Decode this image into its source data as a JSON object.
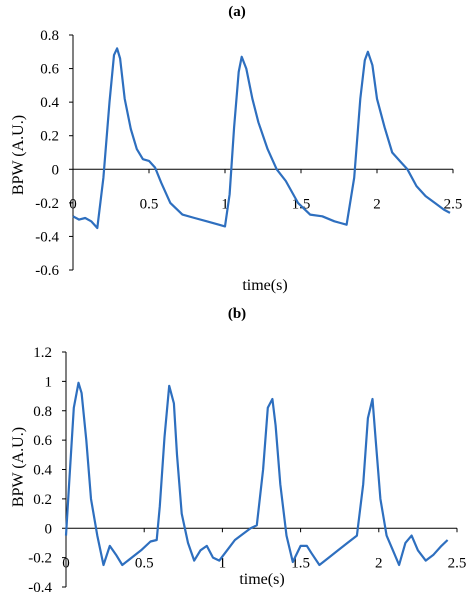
{
  "chart_data": [
    {
      "panel_label": "(a)",
      "type": "line",
      "xlabel": "time(s)",
      "ylabel": "BPW (A.U.)",
      "xlim": [
        0,
        2.5
      ],
      "ylim": [
        -0.6,
        0.8
      ],
      "xticks": [
        0,
        0.5,
        1,
        1.5,
        2,
        2.5
      ],
      "xtick_labels": [
        "0",
        "0.5",
        "1",
        "1.5",
        "2",
        "2.5"
      ],
      "yticks": [
        -0.6,
        -0.4,
        -0.2,
        0,
        0.2,
        0.4,
        0.6,
        0.8
      ],
      "ytick_labels": [
        "-0.6",
        "-0.4",
        "-0.2",
        "0",
        "0.2",
        "0.4",
        "0.6",
        "0.8"
      ],
      "grid": false,
      "line_color": "#2e6fbf",
      "series": [
        {
          "x": [
            0,
            0.04,
            0.08,
            0.12,
            0.16,
            0.2,
            0.24,
            0.27,
            0.29,
            0.31,
            0.34,
            0.38,
            0.42,
            0.46,
            0.5,
            0.54,
            0.58,
            0.64,
            0.72,
            0.8,
            0.88,
            0.96,
            1.0,
            1.03,
            1.06,
            1.09,
            1.11,
            1.14,
            1.18,
            1.22,
            1.28,
            1.34,
            1.4,
            1.48,
            1.56,
            1.64,
            1.72,
            1.76,
            1.8,
            1.85,
            1.89,
            1.92,
            1.94,
            1.97,
            2.0,
            2.05,
            2.1,
            2.16,
            2.2,
            2.26,
            2.32,
            2.38,
            2.44,
            2.48
          ],
          "y": [
            -0.28,
            -0.3,
            -0.29,
            -0.31,
            -0.35,
            -0.05,
            0.4,
            0.68,
            0.72,
            0.66,
            0.42,
            0.24,
            0.12,
            0.06,
            0.05,
            0.01,
            -0.08,
            -0.2,
            -0.27,
            -0.29,
            -0.31,
            -0.33,
            -0.34,
            -0.15,
            0.25,
            0.58,
            0.67,
            0.6,
            0.42,
            0.28,
            0.12,
            0.0,
            -0.07,
            -0.2,
            -0.27,
            -0.28,
            -0.31,
            -0.32,
            -0.33,
            -0.05,
            0.42,
            0.65,
            0.7,
            0.62,
            0.42,
            0.25,
            0.1,
            0.04,
            0.0,
            -0.1,
            -0.16,
            -0.2,
            -0.24,
            -0.26
          ]
        }
      ]
    },
    {
      "panel_label": "(b)",
      "type": "line",
      "xlabel": "time(s)",
      "ylabel": "BPW (A.U.)",
      "xlim": [
        0,
        2.5
      ],
      "ylim": [
        -0.4,
        1.2
      ],
      "xticks": [
        0,
        0.5,
        1,
        1.5,
        2,
        2.5
      ],
      "xtick_labels": [
        "0",
        "0.5",
        "1",
        "1.5",
        "2",
        "2.5"
      ],
      "yticks": [
        -0.4,
        -0.2,
        0,
        0.2,
        0.4,
        0.6,
        0.8,
        1,
        1.2
      ],
      "ytick_labels": [
        "-0.4",
        "-0.2",
        "0",
        "0.2",
        "0.4",
        "0.6",
        "0.8",
        "1",
        "1.2"
      ],
      "grid": false,
      "line_color": "#2e6fbf",
      "series": [
        {
          "x": [
            0,
            0.02,
            0.05,
            0.08,
            0.1,
            0.13,
            0.16,
            0.2,
            0.24,
            0.28,
            0.32,
            0.36,
            0.42,
            0.48,
            0.54,
            0.58,
            0.6,
            0.63,
            0.66,
            0.69,
            0.71,
            0.74,
            0.78,
            0.82,
            0.86,
            0.9,
            0.94,
            0.98,
            1.03,
            1.08,
            1.13,
            1.18,
            1.22,
            1.26,
            1.29,
            1.32,
            1.34,
            1.37,
            1.41,
            1.45,
            1.5,
            1.54,
            1.57,
            1.62,
            1.68,
            1.74,
            1.8,
            1.86,
            1.9,
            1.93,
            1.96,
            1.98,
            2.01,
            2.05,
            2.09,
            2.13,
            2.17,
            2.21,
            2.25,
            2.3,
            2.35,
            2.4,
            2.44
          ],
          "y": [
            -0.05,
            0.3,
            0.82,
            0.99,
            0.92,
            0.6,
            0.2,
            -0.05,
            -0.25,
            -0.12,
            -0.18,
            -0.25,
            -0.2,
            -0.15,
            -0.09,
            -0.08,
            0.15,
            0.62,
            0.97,
            0.85,
            0.5,
            0.1,
            -0.1,
            -0.22,
            -0.15,
            -0.12,
            -0.2,
            -0.22,
            -0.15,
            -0.08,
            -0.04,
            0.0,
            0.02,
            0.4,
            0.82,
            0.88,
            0.7,
            0.3,
            -0.05,
            -0.23,
            -0.12,
            -0.12,
            -0.17,
            -0.25,
            -0.2,
            -0.15,
            -0.1,
            -0.05,
            0.3,
            0.75,
            0.88,
            0.6,
            0.2,
            -0.05,
            -0.15,
            -0.25,
            -0.1,
            -0.05,
            -0.15,
            -0.22,
            -0.18,
            -0.12,
            -0.08
          ]
        }
      ]
    }
  ]
}
